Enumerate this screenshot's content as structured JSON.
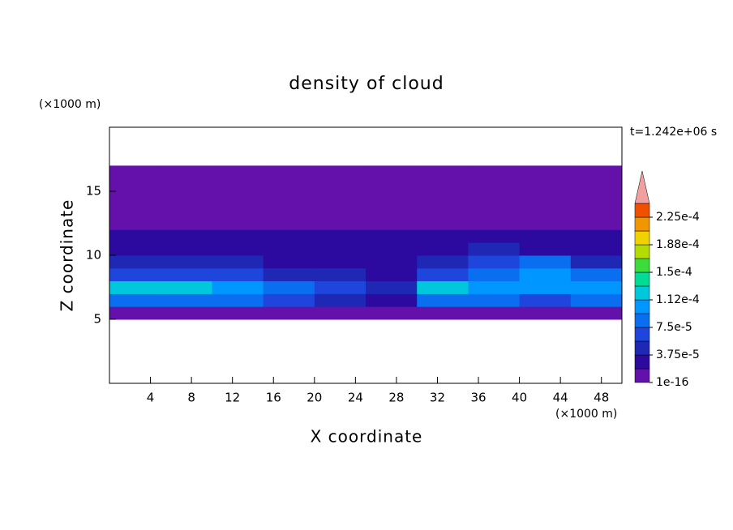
{
  "chart_data": {
    "type": "contour",
    "title": "density of cloud",
    "xlabel": "X coordinate",
    "ylabel": "Z coordinate",
    "xunit": "(×1000 m)",
    "yunit": "(×1000 m)",
    "time_label": "t=1.242e+06 s",
    "xlim": [
      0,
      50
    ],
    "ylim": [
      0,
      20
    ],
    "xticks": [
      4,
      8,
      12,
      16,
      20,
      24,
      28,
      32,
      36,
      40,
      44,
      48
    ],
    "yticks": [
      5,
      10,
      15
    ],
    "xbins": [
      0,
      5,
      10,
      15,
      20,
      25,
      30,
      35,
      40,
      45,
      50
    ],
    "zbins": [
      5,
      6,
      7,
      8,
      9,
      10,
      11,
      12,
      13,
      14,
      15,
      16,
      17
    ],
    "values": [
      [
        1e-05,
        9e-06,
        1e-05,
        8e-06,
        8e-06,
        1e-05,
        1e-05,
        1e-05,
        1e-05,
        1e-05
      ],
      [
        9e-05,
        9e-05,
        8e-05,
        6e-05,
        4e-05,
        3e-05,
        9e-05,
        8e-05,
        6e-05,
        9e-05
      ],
      [
        0.00012,
        0.00013,
        0.00011,
        9e-05,
        6e-05,
        4e-05,
        0.00012,
        0.00011,
        0.0001,
        0.00011
      ],
      [
        6e-05,
        7e-05,
        6e-05,
        5e-05,
        4e-05,
        3e-05,
        7e-05,
        9e-05,
        0.0001,
        8e-05
      ],
      [
        4e-05,
        4e-05,
        4e-05,
        3e-05,
        3e-05,
        3e-05,
        5e-05,
        7e-05,
        8e-05,
        5e-05
      ],
      [
        3e-05,
        3e-05,
        2.5e-05,
        2.5e-05,
        2e-05,
        2e-05,
        3e-05,
        4e-05,
        3e-05,
        3e-05
      ],
      [
        2e-05,
        2e-05,
        2e-05,
        2e-05,
        2e-05,
        2e-05,
        2e-05,
        2e-05,
        2e-05,
        2e-05
      ],
      [
        1e-05,
        1e-05,
        1e-05,
        1e-05,
        1e-05,
        1e-05,
        1e-05,
        1e-05,
        1e-05,
        1e-05
      ],
      [
        1e-05,
        1e-05,
        1e-05,
        1e-05,
        1e-05,
        1e-05,
        1e-05,
        1e-05,
        1e-05,
        1e-05
      ],
      [
        1e-05,
        1e-05,
        1e-05,
        1e-05,
        1e-05,
        1e-05,
        1e-05,
        1e-05,
        1e-05,
        1e-05
      ],
      [
        1e-05,
        1e-05,
        1e-05,
        1e-05,
        1e-05,
        1e-05,
        1e-05,
        1e-05,
        1e-05,
        1e-05
      ],
      [
        8e-06,
        8e-06,
        8e-06,
        8e-06,
        8e-06,
        8e-06,
        8e-06,
        8e-06,
        8e-06,
        8e-06
      ]
    ],
    "levels": [
      1e-16,
      1.875e-05,
      3.75e-05,
      5.625e-05,
      7.5e-05,
      9.375e-05,
      0.0001125,
      0.00013125,
      0.00015,
      0.00016875,
      0.0001875,
      0.00020625,
      0.000225,
      0.00024375
    ],
    "colors": [
      "#6410aa",
      "#2c0aa0",
      "#1e28b4",
      "#1e46dc",
      "#0a6ef0",
      "#0096ff",
      "#00c8dc",
      "#00dc96",
      "#3cdc3c",
      "#b4dc00",
      "#f0d200",
      "#f09600",
      "#f05000"
    ],
    "over_color": "#f0a0a0",
    "colorbar_ticks": [
      {
        "value": 1e-16,
        "label": "1e-16"
      },
      {
        "value": 3.75e-05,
        "label": "3.75e-5"
      },
      {
        "value": 7.5e-05,
        "label": "7.5e-5"
      },
      {
        "value": 0.0001125,
        "label": "1.12e-4"
      },
      {
        "value": 0.00015,
        "label": "1.5e-4"
      },
      {
        "value": 0.0001875,
        "label": "1.88e-4"
      },
      {
        "value": 0.000225,
        "label": "2.25e-4"
      }
    ]
  }
}
